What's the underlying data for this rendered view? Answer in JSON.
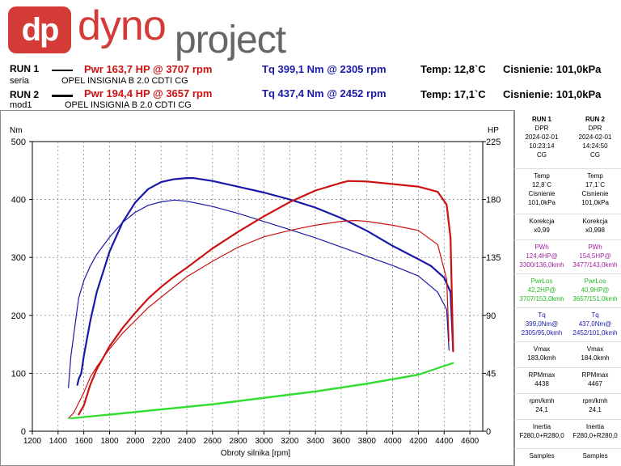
{
  "logo": {
    "mark": "dp",
    "word1": "dyno",
    "word2": "project"
  },
  "runs": [
    {
      "label": "RUN 1",
      "sub_label": "seria",
      "power": "Pwr  163,7 HP @ 3707 rpm",
      "torque": "Tq 399,1 Nm @ 2305 rpm",
      "temp": "Temp: 12,8`C",
      "pressure": "Cisnienie: 101,0kPa",
      "vehicle": "OPEL INSIGNIA B 2.0 CDTI CG"
    },
    {
      "label": "RUN 2",
      "sub_label": "mod1",
      "power": "Pwr  194,4 HP @ 3657 rpm",
      "torque": "Tq 437,4 Nm @ 2452 rpm",
      "temp": "Temp: 17,1`C",
      "pressure": "Cisnienie: 101,0kPa",
      "vehicle": "OPEL INSIGNIA B 2.0 CDTI CG"
    }
  ],
  "panel": [
    {
      "head": [
        "RUN 1",
        "DPR",
        "2024-02-01",
        "10:23:14",
        "CG"
      ],
      "temp_label": "Temp",
      "temp": "12,8`C",
      "cis_label": "Cisnienie",
      "cis": "101,0kPa",
      "kor_label": "Korekcja",
      "kor": "x0,99",
      "pwh_label": "PWh",
      "pwh": "124,4HP@",
      "pwh_at": "3300/136,0kmh",
      "los_label": "PwrLos",
      "los": "42,2HP@",
      "los_at": "3707/153,0kmh",
      "tq_label": "Tq",
      "tq": "399,0Nm@",
      "tq_at": "2305/95,0kmh",
      "vmax_label": "Vmax",
      "vmax": "183,0kmh",
      "rpm_label": "RPMmax",
      "rpm": "4438",
      "rk_label": "rpm/kmh",
      "rk": "24,1",
      "in_label": "Inertia",
      "in": "F280,0+R280,0",
      "samp_label": "Samples"
    },
    {
      "head": [
        "RUN 2",
        "DPR",
        "2024-02-01",
        "14:24:50",
        "CG"
      ],
      "temp_label": "Temp",
      "temp": "17,1`C",
      "cis_label": "Cisnienie",
      "cis": "101,0kPa",
      "kor_label": "Korekcja",
      "kor": "x0,998",
      "pwh_label": "PWh",
      "pwh": "154,5HP@",
      "pwh_at": "3477/143,0kmh",
      "los_label": "PwrLos",
      "los": "40,9HP@",
      "los_at": "3657/151,0kmh",
      "tq_label": "Tq",
      "tq": "437,0Nm@",
      "tq_at": "2452/101,0kmh",
      "vmax_label": "Vmax",
      "vmax": "184,0kmh",
      "rpm_label": "RPMmax",
      "rpm": "4467",
      "rk_label": "rpm/kmh",
      "rk": "24,1",
      "in_label": "Inertia",
      "in": "F280,0+R280,0",
      "samp_label": "Samples"
    }
  ],
  "chart_data": {
    "type": "line",
    "xlabel": "Obroty silnika [rpm]",
    "ylabel_left": "Nm",
    "ylabel_right": "HP",
    "xlim": [
      1200,
      4700
    ],
    "ylim_left": [
      0,
      500
    ],
    "ylim_right": [
      0,
      225
    ],
    "x_ticks": [
      1200,
      1400,
      1600,
      1800,
      2000,
      2200,
      2400,
      2600,
      2800,
      3000,
      3200,
      3400,
      3600,
      3800,
      4000,
      4200,
      4400,
      4600
    ],
    "y_left_ticks": [
      0,
      100,
      200,
      300,
      400,
      500
    ],
    "y_right_ticks": [
      0,
      45,
      90,
      135,
      180,
      225
    ],
    "grid": true,
    "colors": {
      "torque": "#1a1aa8",
      "power": "#cc1111",
      "loss": "#33dd33"
    },
    "series": [
      {
        "name": "Tq RUN 2",
        "axis": "left",
        "color": "#1a1aa8",
        "width": 2.2,
        "x": [
          1550,
          1560,
          1580,
          1600,
          1650,
          1700,
          1800,
          1900,
          2000,
          2100,
          2200,
          2300,
          2400,
          2452,
          2600,
          2800,
          3000,
          3200,
          3400,
          3600,
          3800,
          4000,
          4200,
          4300,
          4400,
          4450,
          4470
        ],
        "y": [
          80,
          90,
          100,
          130,
          190,
          240,
          310,
          360,
          395,
          418,
          430,
          435,
          437,
          437,
          432,
          422,
          412,
          400,
          386,
          368,
          346,
          320,
          297,
          285,
          265,
          240,
          140
        ]
      },
      {
        "name": "Tq RUN 1",
        "axis": "left",
        "color": "#1a1aa8",
        "width": 1.2,
        "x": [
          1480,
          1500,
          1530,
          1560,
          1600,
          1650,
          1700,
          1800,
          1900,
          2000,
          2100,
          2200,
          2305,
          2400,
          2600,
          2800,
          3000,
          3200,
          3400,
          3600,
          3800,
          4000,
          4200,
          4350,
          4420,
          4438
        ],
        "y": [
          75,
          130,
          180,
          230,
          260,
          285,
          305,
          335,
          360,
          378,
          390,
          396,
          399,
          397,
          388,
          376,
          362,
          348,
          334,
          318,
          302,
          286,
          268,
          240,
          210,
          140
        ]
      },
      {
        "name": "Pwr RUN 2",
        "axis": "right",
        "color": "#cc1111",
        "width": 2.2,
        "x": [
          1560,
          1600,
          1650,
          1700,
          1800,
          1900,
          2000,
          2100,
          2200,
          2300,
          2400,
          2600,
          2800,
          3000,
          3200,
          3400,
          3600,
          3657,
          3800,
          4000,
          4200,
          4350,
          4420,
          4450,
          4470
        ],
        "y": [
          13,
          20,
          36,
          48,
          66,
          80,
          92,
          103,
          112,
          120,
          127,
          142,
          155,
          167,
          178,
          187,
          193,
          194.4,
          194,
          192,
          190,
          186,
          176,
          150,
          62
        ]
      },
      {
        "name": "Pwr RUN 1",
        "axis": "right",
        "color": "#cc1111",
        "width": 1.2,
        "x": [
          1480,
          1520,
          1560,
          1600,
          1650,
          1700,
          1800,
          1900,
          2000,
          2100,
          2200,
          2300,
          2400,
          2600,
          2800,
          3000,
          3200,
          3400,
          3600,
          3707,
          3800,
          4000,
          4200,
          4350,
          4420,
          4438
        ],
        "y": [
          10,
          14,
          22,
          30,
          42,
          50,
          64,
          76,
          86,
          96,
          104,
          112,
          120,
          132,
          143,
          151,
          156,
          160,
          163,
          163.7,
          163,
          160,
          156,
          145,
          118,
          70
        ]
      },
      {
        "name": "PwrLos RUN 2",
        "axis": "right",
        "color": "#33dd33",
        "width": 2.2,
        "x": [
          1500,
          1800,
          2200,
          2600,
          3000,
          3400,
          3800,
          4200,
          4470
        ],
        "y": [
          10,
          13,
          17,
          21,
          26,
          31,
          37,
          44,
          53
        ]
      },
      {
        "name": "PwrLos RUN 1",
        "axis": "right",
        "color": "#33dd33",
        "width": 1.2,
        "x": [
          1480,
          1800,
          2200,
          2600,
          3000,
          3400,
          3800,
          4200,
          4438
        ],
        "y": [
          10,
          12.5,
          16.5,
          20.5,
          25.5,
          30.5,
          36.5,
          43.5,
          52
        ]
      }
    ]
  }
}
